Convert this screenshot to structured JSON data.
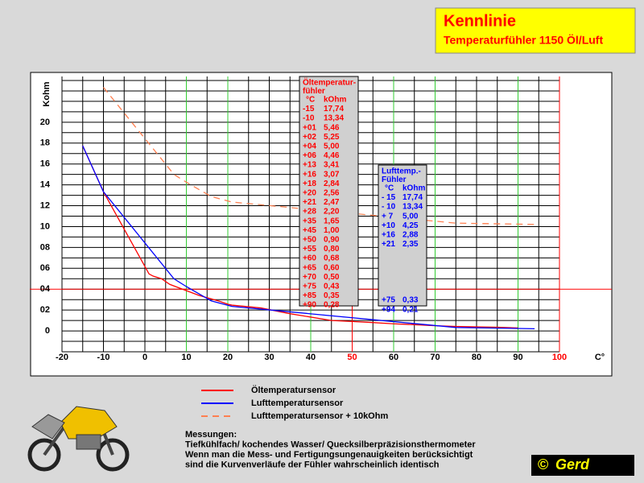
{
  "chart_data": {
    "type": "line",
    "title": "Kennlinie",
    "subtitle": "Temperaturfühler 1150 Öl/Luft",
    "ylabel": "Kohm",
    "xlabel": "C°",
    "xlim": [
      -20,
      100
    ],
    "ylim": [
      -2,
      24
    ],
    "xticks": [
      -20,
      -10,
      0,
      10,
      20,
      30,
      40,
      50,
      60,
      70,
      80,
      90,
      100
    ],
    "xtick_colors": [
      "#000000",
      "#000000",
      "#000000",
      "#000000",
      "#000000",
      "#000000",
      "#000000",
      "#ff0000",
      "#000000",
      "#000000",
      "#000000",
      "#000000",
      "#ff0000"
    ],
    "xgrid": [
      -20,
      -15,
      -10,
      -5,
      0,
      5,
      10,
      15,
      20,
      25,
      30,
      35,
      40,
      45,
      50,
      55,
      60,
      65,
      70,
      75,
      80,
      85,
      90,
      95,
      100
    ],
    "xgrid_colors": [
      "#000000",
      "#000000",
      "#000000",
      "#000000",
      "#000000",
      "#000000",
      "#33cc33",
      "#000000",
      "#33cc33",
      "#000000",
      "#000000",
      "#000000",
      "#33cc33",
      "#000000",
      "#ff0000",
      "#000000",
      "#33cc33",
      "#000000",
      "#33cc33",
      "#000000",
      "#000000",
      "#000000",
      "#33cc33",
      "#000000",
      "#ff0000"
    ],
    "yticks": [
      0,
      {
        "value": 2,
        "label": "02"
      },
      {
        "value": 4,
        "label": "04"
      },
      {
        "value": 6,
        "label": "06"
      },
      {
        "value": 8,
        "label": "08"
      },
      10,
      12,
      14,
      16,
      18,
      20
    ],
    "ygrid": [
      -2,
      -1,
      0,
      1,
      2,
      3,
      4,
      5,
      6,
      7,
      8,
      9,
      10,
      11,
      12,
      13,
      14,
      15,
      16,
      17,
      18,
      19,
      20,
      21,
      22,
      23,
      24
    ],
    "hline": {
      "value": 4,
      "color": "#ff0000"
    },
    "series": [
      {
        "name": "Öltemperatursensor",
        "color": "#ff0000",
        "dashed": false,
        "x": [
          -15,
          -10,
          1,
          2,
          4,
          6,
          13,
          16,
          18,
          20,
          21,
          28,
          35,
          45,
          50,
          55,
          60,
          65,
          70,
          75,
          85,
          90
        ],
        "values": [
          17.74,
          13.34,
          5.46,
          5.25,
          5.0,
          4.46,
          3.41,
          3.07,
          2.84,
          2.56,
          2.47,
          2.2,
          1.65,
          1.0,
          0.9,
          0.8,
          0.68,
          0.6,
          0.5,
          0.43,
          0.35,
          0.28
        ]
      },
      {
        "name": "Lufttemperatursensor",
        "color": "#0000ff",
        "dashed": false,
        "x": [
          -15,
          -10,
          7,
          10,
          16,
          21,
          75,
          94
        ],
        "values": [
          17.74,
          13.34,
          5.0,
          4.25,
          2.88,
          2.35,
          0.33,
          0.21
        ]
      },
      {
        "name": "Lufttemperatursensor + 10kOhm",
        "color": "#ff7f50",
        "dashed": true,
        "x": [
          -10,
          7,
          10,
          16,
          21,
          75,
          94
        ],
        "values": [
          23.34,
          15.0,
          14.25,
          12.88,
          12.35,
          10.33,
          10.21
        ]
      }
    ]
  },
  "tables": [
    {
      "color": "#ff0000",
      "title_lines": [
        "Öltemperatur-",
        "fühler"
      ],
      "header": [
        "°C",
        "kOhm"
      ],
      "rows": [
        [
          "-15",
          "17,74"
        ],
        [
          "-10",
          "13,34"
        ],
        [
          "+01",
          "5,46"
        ],
        [
          "+02",
          "5,25"
        ],
        [
          "+04",
          "5,00"
        ],
        [
          "+06",
          "4,46"
        ],
        [
          "+13",
          "3,41"
        ],
        [
          "+16",
          "3,07"
        ],
        [
          "+18",
          "2,84"
        ],
        [
          "+20",
          "2,56"
        ],
        [
          "+21",
          "2,47"
        ],
        [
          "+28",
          "2,20"
        ],
        [
          "+35",
          "1,65"
        ],
        [
          "+45",
          "1,00"
        ],
        [
          "+50",
          "0,90"
        ],
        [
          "+55",
          "0,80"
        ],
        [
          "+60",
          "0,68"
        ],
        [
          "+65",
          "0,60"
        ],
        [
          "+70",
          "0,50"
        ],
        [
          "+75",
          "0,43"
        ],
        [
          "+85",
          "0,35"
        ],
        [
          "+90",
          "0,28"
        ]
      ]
    },
    {
      "color": "#0000ff",
      "title_lines": [
        "Lufttemp.-",
        "Fühler"
      ],
      "header": [
        "°C",
        "kOhm"
      ],
      "rows": [
        [
          "- 15",
          "17,74"
        ],
        [
          "- 10",
          "13,34"
        ],
        [
          "+  7",
          "5,00"
        ],
        [
          "+10",
          "4,25"
        ],
        [
          "+16",
          "2,88"
        ],
        [
          "+21",
          "2,35"
        ],
        null,
        null,
        null,
        null,
        null,
        [
          "+75",
          "0,33"
        ],
        [
          "+94",
          "0,21"
        ]
      ]
    }
  ],
  "notes": [
    "Messungen:",
    "Tiefkühlfach/ kochendes Wasser/ Quecksilberpräzisionsthermometer",
    "Wenn man die Mess- und Fertigungsungenauigkeiten berücksichtigt",
    "sind die Kurvenverläufe der Fühler wahrscheinlich identisch"
  ],
  "logo": {
    "symbol": "©",
    "text": "Gerd"
  }
}
